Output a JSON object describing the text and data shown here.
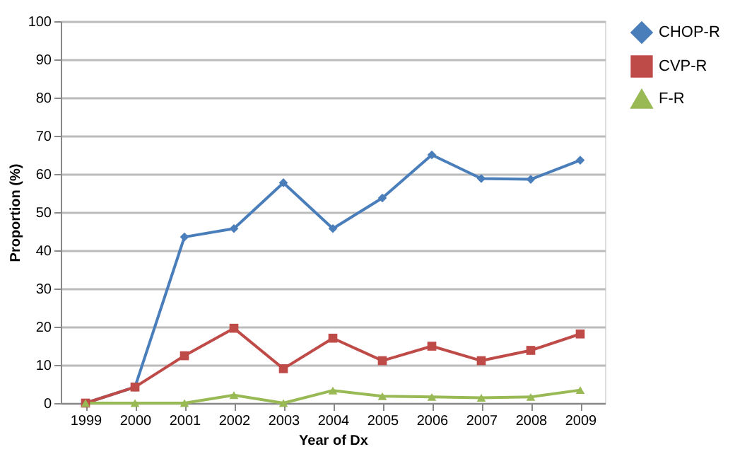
{
  "chart_data": {
    "type": "line",
    "xlabel": "Year of Dx",
    "ylabel": "Proportion (%)",
    "categories": [
      "1999",
      "2000",
      "2001",
      "2002",
      "2003",
      "2004",
      "2005",
      "2006",
      "2007",
      "2008",
      "2009"
    ],
    "series": [
      {
        "name": "CHOP-R",
        "color": "#4a7ebb",
        "marker": "diamond",
        "values": [
          0,
          4.2,
          43.5,
          45.7,
          57.7,
          45.7,
          53.7,
          65,
          58.8,
          58.6,
          63.6
        ]
      },
      {
        "name": "CVP-R",
        "color": "#be4b48",
        "marker": "square",
        "values": [
          0,
          4.2,
          12.4,
          19.6,
          9,
          17,
          11.1,
          14.9,
          11.1,
          13.8,
          18.1
        ]
      },
      {
        "name": "F-R",
        "color": "#98b954",
        "marker": "triangle",
        "values": [
          0,
          0,
          0,
          2.1,
          0,
          3.3,
          1.8,
          1.6,
          1.4,
          1.6,
          3.4
        ]
      }
    ],
    "ylim": [
      0,
      100
    ],
    "yticks": [
      0,
      10,
      20,
      30,
      40,
      50,
      60,
      70,
      80,
      90,
      100
    ],
    "grid": "y",
    "legend": "right",
    "line_style": "solid"
  }
}
